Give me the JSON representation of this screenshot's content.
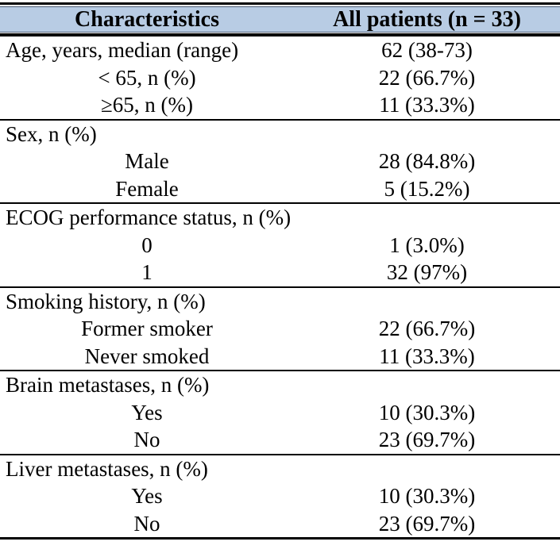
{
  "colors": {
    "header-bg": "#b8cce4",
    "rule": "#000000",
    "text": "#000000"
  },
  "table": {
    "header": {
      "characteristics_label": "Characteristics",
      "patients_label": "All patients (n = 33)"
    },
    "sections": [
      {
        "rows": [
          {
            "label": "Age, years, median (range)",
            "value": "62 (38-73)",
            "style": "group"
          },
          {
            "label": "< 65, n (%)",
            "value": "22 (66.7%)",
            "style": "sub"
          },
          {
            "label": "≥65, n (%)",
            "value": "11 (33.3%)",
            "style": "sub"
          }
        ]
      },
      {
        "rows": [
          {
            "label": "Sex, n (%)",
            "value": "",
            "style": "group"
          },
          {
            "label": "Male",
            "value": "28 (84.8%)",
            "style": "sub"
          },
          {
            "label": "Female",
            "value": "5 (15.2%)",
            "style": "sub"
          }
        ]
      },
      {
        "rows": [
          {
            "label": "ECOG performance status, n (%)",
            "value": "",
            "style": "group"
          },
          {
            "label": "0",
            "value": "1 (3.0%)",
            "style": "sub"
          },
          {
            "label": "1",
            "value": "32 (97%)",
            "style": "sub"
          }
        ]
      },
      {
        "rows": [
          {
            "label": "Smoking history, n (%)",
            "value": "",
            "style": "group"
          },
          {
            "label": "Former smoker",
            "value": "22 (66.7%)",
            "style": "sub"
          },
          {
            "label": "Never smoked",
            "value": "11 (33.3%)",
            "style": "sub"
          }
        ]
      },
      {
        "rows": [
          {
            "label": "Brain metastases, n (%)",
            "value": "",
            "style": "group"
          },
          {
            "label": "Yes",
            "value": "10 (30.3%)",
            "style": "sub"
          },
          {
            "label": "No",
            "value": "23 (69.7%)",
            "style": "sub"
          }
        ]
      },
      {
        "rows": [
          {
            "label": "Liver metastases, n (%)",
            "value": "",
            "style": "group"
          },
          {
            "label": "Yes",
            "value": "10 (30.3%)",
            "style": "sub"
          },
          {
            "label": "No",
            "value": "23 (69.7%)",
            "style": "sub"
          }
        ]
      }
    ]
  }
}
